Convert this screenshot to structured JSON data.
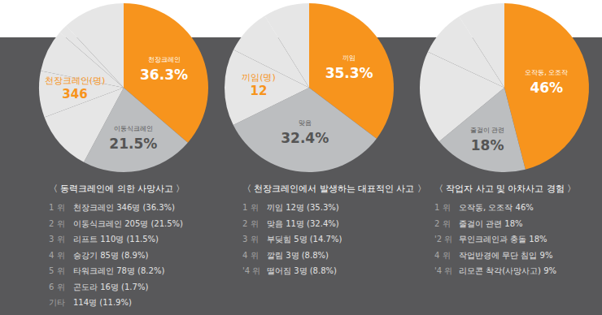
{
  "chart_data": [
    {
      "type": "pie",
      "title": "〈 동력크레인에 의한 사망사고 〉",
      "categories": [
        "천장크레인",
        "이동식크레인",
        "리프트",
        "승강기",
        "타워크레인",
        "곤도라",
        "기타"
      ],
      "values": [
        36.3,
        21.5,
        11.5,
        8.9,
        8.2,
        1.7,
        11.9
      ],
      "value_labels": [
        "36.3%",
        "21.5%",
        null,
        null,
        null,
        null,
        null
      ],
      "colors": [
        "#f7941d",
        "#bcbec0",
        "#e6e6e6",
        "#e6e6e6",
        "#e6e6e6",
        "#e6e6e6",
        "#e6e6e6"
      ],
      "data_labels": true,
      "highlight": {
        "label": "천장크레인(명)",
        "value": 346
      },
      "list": [
        {
          "rank": "1 위",
          "text": "천장크레인 346명 (36.3%)"
        },
        {
          "rank": "2 위",
          "text": "이동식크레인 205명 (21.5%)"
        },
        {
          "rank": "3 위",
          "text": "리프트 110명 (11.5%)"
        },
        {
          "rank": "4 위",
          "text": "승강기 85명 (8.9%)"
        },
        {
          "rank": "5 위",
          "text": "타워크레인 78명 (8.2%)"
        },
        {
          "rank": "6 위",
          "text": "곤도라 16명 (1.7%)"
        },
        {
          "rank": "기타",
          "text": "114명 (11.9%)"
        }
      ]
    },
    {
      "type": "pie",
      "title": "〈 천장크레인에서 발생하는 대표적인 사고 〉",
      "categories": [
        "끼임",
        "맞음",
        "부딪힘",
        "깔림",
        "떨어짐"
      ],
      "values": [
        35.3,
        32.4,
        14.7,
        8.8,
        8.8
      ],
      "value_labels": [
        "35.3%",
        "32.4%",
        null,
        null,
        null
      ],
      "colors": [
        "#f7941d",
        "#bcbec0",
        "#e6e6e6",
        "#e6e6e6",
        "#e6e6e6"
      ],
      "data_labels": true,
      "highlight": {
        "label": "끼임(명)",
        "value": 12
      },
      "list": [
        {
          "rank": "1 위",
          "text": "끼임 12명 (35.3%)"
        },
        {
          "rank": "2 위",
          "text": "맞음 11명 (32.4%)"
        },
        {
          "rank": "3 위",
          "text": "부딪힘 5명 (14.7%)"
        },
        {
          "rank": "4 위",
          "text": "깔림 3명 (8.8%)"
        },
        {
          "rank": "'4 위",
          "text": "떨어짐 3명 (8.8%)"
        }
      ]
    },
    {
      "type": "pie",
      "title": "〈 작업자 사고 및 아차사고 경험 〉",
      "categories": [
        "오작동, 오조작",
        "줄걸이 관련",
        "무인크레인과 충돌",
        "작업반경에 무단 침입",
        "리모콘 착각(사망사고)"
      ],
      "values": [
        46,
        18,
        18,
        9,
        9
      ],
      "value_labels": [
        "46%",
        "18%",
        null,
        null,
        null
      ],
      "colors": [
        "#f7941d",
        "#bcbec0",
        "#e6e6e6",
        "#e6e6e6",
        "#e6e6e6"
      ],
      "data_labels": true,
      "list": [
        {
          "rank": "1 위",
          "text": "오작동, 오조작 46%"
        },
        {
          "rank": "2 위",
          "text": "줄걸이 관련 18%"
        },
        {
          "rank": "'2 위",
          "text": "무인크레인과 충돌 18%"
        },
        {
          "rank": "4 위",
          "text": "작업반경에 무단 침입 9%"
        },
        {
          "rank": "'4 위",
          "text": "리모콘 착각(사망사고) 9%"
        }
      ]
    }
  ]
}
